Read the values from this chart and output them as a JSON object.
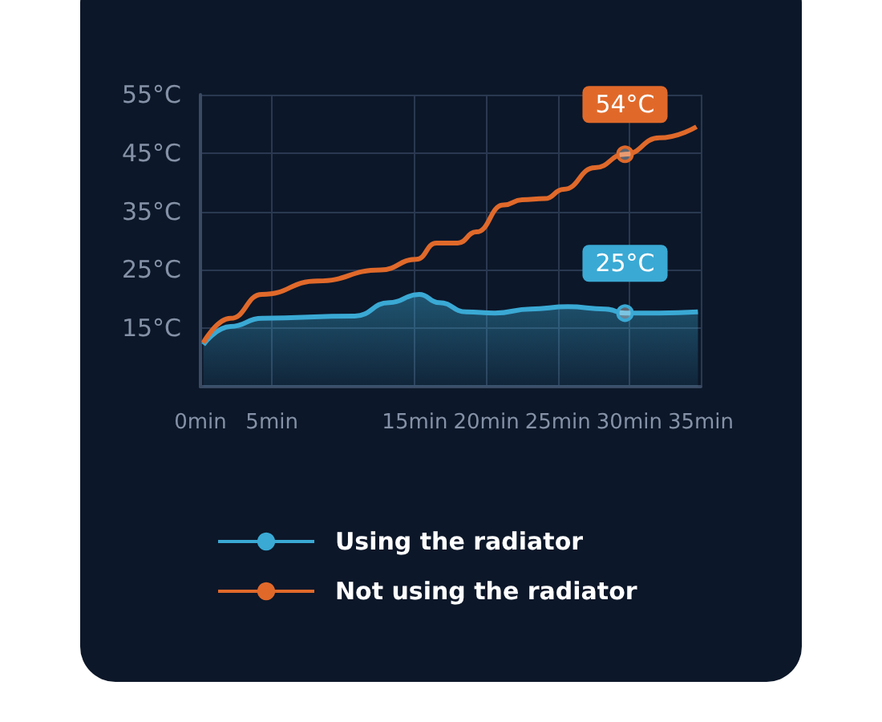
{
  "chart_data": {
    "type": "line",
    "x": [
      0.2,
      2.1,
      4.3,
      8.2,
      12.6,
      15.1,
      16.5,
      18,
      19.3,
      21.2,
      22.5,
      24.1,
      25.4,
      27.6,
      29.7,
      32.1,
      34.7
    ],
    "xlim": [
      0,
      35
    ],
    "xticks": [
      {
        "value": 0,
        "label": "0min"
      },
      {
        "value": 5,
        "label": "5min"
      },
      {
        "value": 15,
        "label": "15min"
      },
      {
        "value": 20,
        "label": "20min"
      },
      {
        "value": 25,
        "label": "25min"
      },
      {
        "value": 30,
        "label": "30min"
      },
      {
        "value": 35,
        "label": "35min"
      }
    ],
    "ylim": [
      5,
      55
    ],
    "yticks": [
      {
        "value": 15,
        "label": "15°C"
      },
      {
        "value": 25,
        "label": "25°C"
      },
      {
        "value": 35,
        "label": "35°C"
      },
      {
        "value": 45,
        "label": "45°C"
      },
      {
        "value": 55,
        "label": "55°C"
      }
    ],
    "series": [
      {
        "name": "Using the radiator",
        "type": "area",
        "color": "#3aa9d4",
        "x": [
          0.2,
          2.1,
          4.3,
          10.8,
          13.2,
          15.3,
          16.7,
          18.6,
          20.6,
          23.1,
          25.7,
          28.3,
          29.7,
          32.1,
          34.8
        ],
        "values": [
          12.2,
          15.3,
          16.7,
          17.1,
          19.4,
          20.8,
          19.4,
          17.8,
          17.6,
          18.3,
          18.7,
          18.3,
          17.6,
          17.6,
          17.8
        ]
      },
      {
        "name": "Not using the radiator",
        "color": "#e0692a",
        "values": [
          12.5,
          16.7,
          20.8,
          23.1,
          25,
          26.8,
          29.6,
          29.6,
          31.5,
          36.1,
          37,
          37.2,
          38.8,
          42.5,
          44.8,
          47.6,
          49.5
        ]
      }
    ],
    "annotations": [
      {
        "text": "25°C",
        "x": 29.7,
        "y": 17.6
      },
      {
        "text": "54°C",
        "x": 29.7,
        "y": 44.8
      }
    ],
    "grid": true,
    "legend": "bottom",
    "marker": "none"
  }
}
